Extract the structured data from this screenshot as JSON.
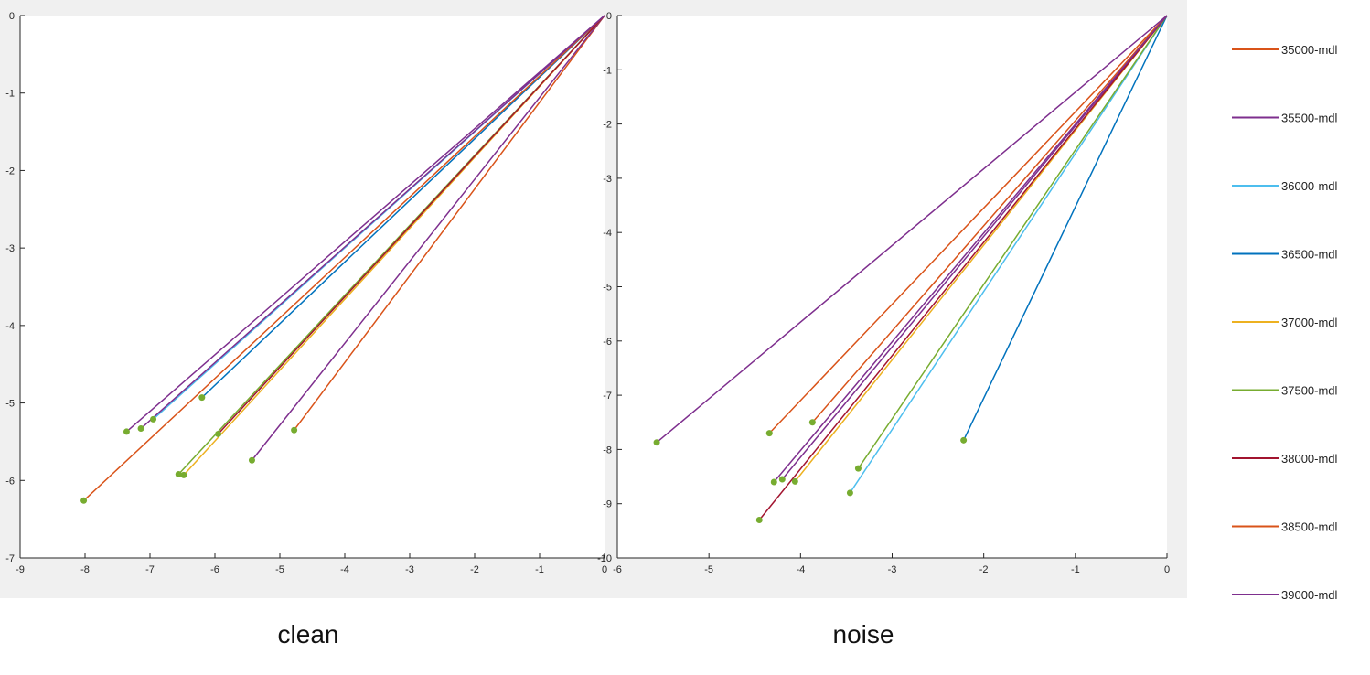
{
  "chart_data": [
    {
      "type": "line",
      "caption": "clean",
      "xlim": [
        -9,
        0
      ],
      "ylim": [
        -7,
        0
      ],
      "xticks": [
        -9,
        -8,
        -7,
        -6,
        -5,
        -4,
        -3,
        -2,
        -1,
        0
      ],
      "yticks": [
        0,
        -1,
        -2,
        -3,
        -4,
        -5,
        -6,
        -7
      ],
      "grid": false,
      "series": [
        {
          "name": "35000-mdl",
          "color": "#D95319",
          "x": [
            0,
            -4.78
          ],
          "y": [
            0,
            -5.35
          ]
        },
        {
          "name": "35500-mdl",
          "color": "#7E2F8E",
          "x": [
            0,
            -5.43
          ],
          "y": [
            0,
            -5.74
          ]
        },
        {
          "name": "36000-mdl",
          "color": "#4DBEEE",
          "x": [
            0,
            -6.95
          ],
          "y": [
            0,
            -5.21
          ]
        },
        {
          "name": "36500-mdl",
          "color": "#0072BD",
          "x": [
            0,
            -6.2
          ],
          "y": [
            0,
            -4.93
          ]
        },
        {
          "name": "37000-mdl",
          "color": "#EDB120",
          "x": [
            0,
            -6.48
          ],
          "y": [
            0,
            -5.93
          ]
        },
        {
          "name": "37500-mdl",
          "color": "#77AC30",
          "x": [
            0,
            -6.56
          ],
          "y": [
            0,
            -5.92
          ]
        },
        {
          "name": "38000-mdl",
          "color": "#A2142F",
          "x": [
            0,
            -5.95
          ],
          "y": [
            0,
            -5.4
          ]
        },
        {
          "name": "38500-mdl",
          "color": "#D95319",
          "x": [
            0,
            -8.02
          ],
          "y": [
            0,
            -6.26
          ]
        },
        {
          "name": "39000-mdl",
          "color": "#7E2F8E",
          "x": [
            0,
            -7.36
          ],
          "y": [
            0,
            -5.37
          ]
        },
        {
          "name": "",
          "color": "#7E2F8E",
          "x": [
            0,
            -7.14
          ],
          "y": [
            0,
            -5.33
          ]
        }
      ]
    },
    {
      "type": "line",
      "caption": "noise",
      "xlim": [
        -6,
        0
      ],
      "ylim": [
        -10,
        0
      ],
      "xticks": [
        -6,
        -5,
        -4,
        -3,
        -2,
        -1,
        0
      ],
      "yticks": [
        0,
        -1,
        -2,
        -3,
        -4,
        -5,
        -6,
        -7,
        -8,
        -9,
        -10
      ],
      "grid": false,
      "series": [
        {
          "name": "35000-mdl",
          "color": "#D95319",
          "x": [
            0,
            -4.34
          ],
          "y": [
            0,
            -7.7
          ]
        },
        {
          "name": "35500-mdl",
          "color": "#7E2F8E",
          "x": [
            0,
            -4.2
          ],
          "y": [
            0,
            -8.55
          ]
        },
        {
          "name": "36000-mdl",
          "color": "#4DBEEE",
          "x": [
            0,
            -3.46
          ],
          "y": [
            0,
            -8.8
          ]
        },
        {
          "name": "36500-mdl",
          "color": "#0072BD",
          "x": [
            0,
            -2.22
          ],
          "y": [
            0,
            -7.83
          ]
        },
        {
          "name": "37000-mdl",
          "color": "#EDB120",
          "x": [
            0,
            -4.06
          ],
          "y": [
            0,
            -8.59
          ]
        },
        {
          "name": "37500-mdl",
          "color": "#77AC30",
          "x": [
            0,
            -3.37
          ],
          "y": [
            0,
            -8.35
          ]
        },
        {
          "name": "38000-mdl",
          "color": "#A2142F",
          "x": [
            0,
            -4.45
          ],
          "y": [
            0,
            -9.3
          ]
        },
        {
          "name": "38500-mdl",
          "color": "#D95319",
          "x": [
            0,
            -3.87
          ],
          "y": [
            0,
            -7.5
          ]
        },
        {
          "name": "39000-mdl",
          "color": "#7E2F8E",
          "x": [
            0,
            -5.57
          ],
          "y": [
            0,
            -7.87
          ]
        },
        {
          "name": "",
          "color": "#7E2F8E",
          "x": [
            0,
            -4.29
          ],
          "y": [
            0,
            -8.6
          ]
        }
      ]
    }
  ],
  "legend": {
    "placement": "right",
    "entries": [
      {
        "label": "35000-mdl",
        "color": "#D95319"
      },
      {
        "label": "35500-mdl",
        "color": "#7E2F8E"
      },
      {
        "label": "36000-mdl",
        "color": "#4DBEEE"
      },
      {
        "label": "36500-mdl",
        "color": "#0072BD"
      },
      {
        "label": "37000-mdl",
        "color": "#EDB120"
      },
      {
        "label": "37500-mdl",
        "color": "#77AC30"
      },
      {
        "label": "38000-mdl",
        "color": "#A2142F"
      },
      {
        "label": "38500-mdl",
        "color": "#D95319"
      },
      {
        "label": "39000-mdl",
        "color": "#7E2F8E"
      }
    ]
  },
  "captions": {
    "left": "clean",
    "right": "noise"
  },
  "style": {
    "marker_color": "#77AC30",
    "panel_background": "#F0F0F0",
    "axes_background": "#FFFFFF"
  }
}
